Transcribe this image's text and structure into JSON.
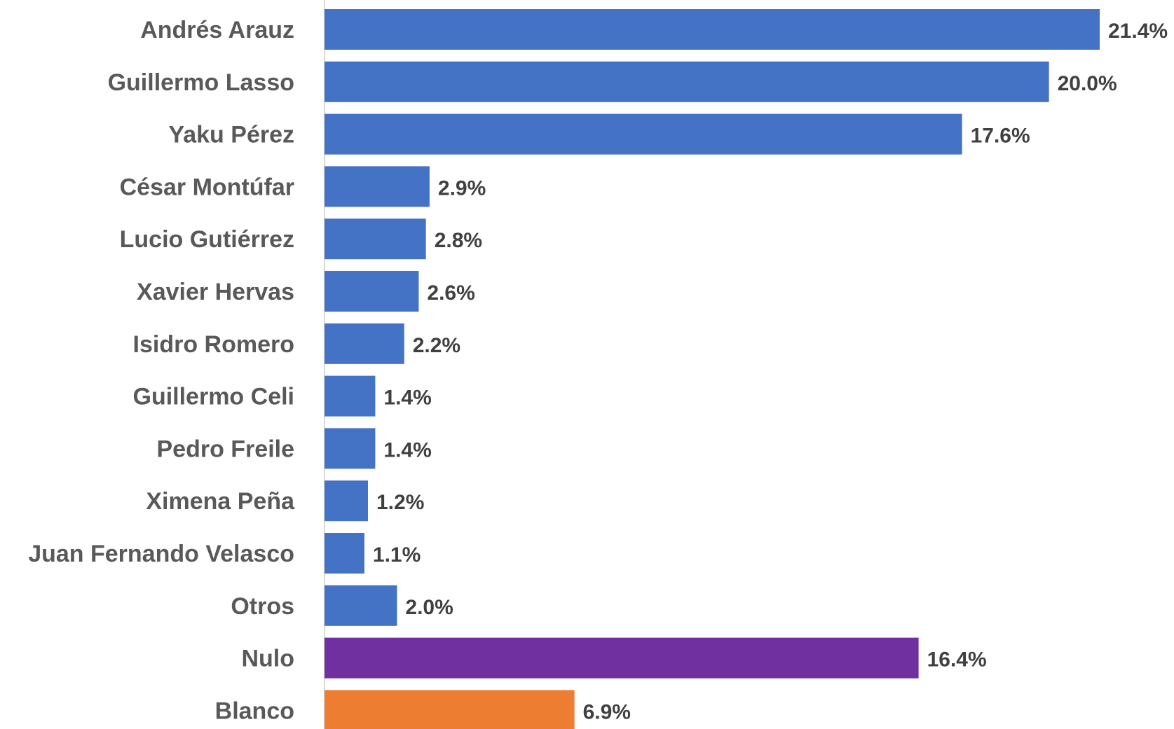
{
  "chart_data": {
    "type": "bar",
    "orientation": "horizontal",
    "categories": [
      "Andrés Arauz",
      "Guillermo Lasso",
      "Yaku Pérez",
      "César Montúfar",
      "Lucio Gutiérrez",
      "Xavier Hervas",
      "Isidro Romero",
      "Guillermo Celi",
      "Pedro Freile",
      "Ximena Peña",
      "Juan Fernando Velasco",
      "Otros",
      "Nulo",
      "Blanco"
    ],
    "values": [
      21.4,
      20.0,
      17.6,
      2.9,
      2.8,
      2.6,
      2.2,
      1.4,
      1.4,
      1.2,
      1.1,
      2.0,
      16.4,
      6.9
    ],
    "value_labels": [
      "21.4%",
      "20.0%",
      "17.6%",
      "2.9%",
      "2.8%",
      "2.6%",
      "2.2%",
      "1.4%",
      "1.4%",
      "1.2%",
      "1.1%",
      "2.0%",
      "16.4%",
      "6.9%"
    ],
    "bar_colors": [
      "#4472C4",
      "#4472C4",
      "#4472C4",
      "#4472C4",
      "#4472C4",
      "#4472C4",
      "#4472C4",
      "#4472C4",
      "#4472C4",
      "#4472C4",
      "#4472C4",
      "#4472C4",
      "#7030A0",
      "#ED7D31"
    ],
    "xlim": [
      0,
      21.4
    ],
    "title": "",
    "xlabel": "",
    "ylabel": "",
    "grid": false,
    "legend": "none"
  }
}
